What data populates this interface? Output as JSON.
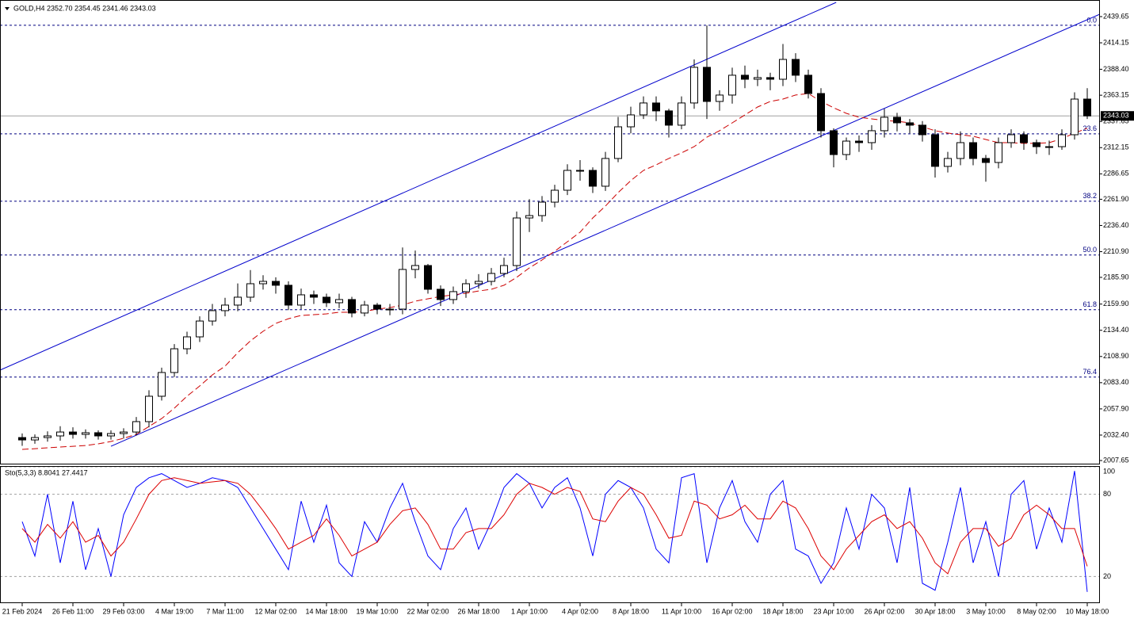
{
  "chart_data": [
    {
      "type": "candlestick",
      "title": "GOLD,H4  2352.70 2354.45 2341.46 2343.03",
      "categories": [
        "21 Feb 2024",
        null,
        null,
        null,
        "26 Feb 11:00",
        null,
        null,
        null,
        "29 Feb 03:00",
        null,
        null,
        null,
        "4 Mar 19:00",
        null,
        null,
        null,
        "7 Mar 11:00",
        null,
        null,
        null,
        "12 Mar 02:00",
        null,
        null,
        null,
        "14 Mar 18:00",
        null,
        null,
        null,
        "19 Mar 10:00",
        null,
        null,
        null,
        "22 Mar 02:00",
        null,
        null,
        null,
        "26 Mar 18:00",
        null,
        null,
        null,
        "1 Apr 10:00",
        null,
        null,
        null,
        "4 Apr 02:00",
        null,
        null,
        null,
        "8 Apr 18:00",
        null,
        null,
        null,
        "11 Apr 10:00",
        null,
        null,
        null,
        "16 Apr 02:00",
        null,
        null,
        null,
        "18 Apr 18:00",
        null,
        null,
        null,
        "23 Apr 10:00",
        null,
        null,
        null,
        "26 Apr 02:00",
        null,
        null,
        null,
        "30 Apr 18:00",
        null,
        null,
        null,
        "3 May 10:00",
        null,
        null,
        null,
        "8 May 02:00",
        null,
        null,
        null,
        "10 May 18:00"
      ],
      "open": [
        2030.0,
        2027.7,
        2030.0,
        2031.6,
        2035.4,
        2033.1,
        2034.7,
        2031.6,
        2033.9,
        2035.4,
        2045.5,
        2070.2,
        2093.3,
        2116.4,
        2128.0,
        2143.4,
        2153.5,
        2158.9,
        2166.6,
        2179.7,
        2182.0,
        2178.2,
        2158.9,
        2168.9,
        2166.6,
        2161.2,
        2164.3,
        2151.2,
        2158.9,
        2155.0,
        2155.0,
        2193.6,
        2197.4,
        2174.3,
        2164.3,
        2172.0,
        2179.7,
        2182.0,
        2189.7,
        2197.4,
        2243.7,
        2246.0,
        2259.1,
        2270.7,
        2290.0,
        2290.0,
        2274.6,
        2301.6,
        2332.4,
        2344.0,
        2355.6,
        2347.9,
        2334.0,
        2355.6,
        2390.3,
        2357.1,
        2363.3,
        2382.6,
        2378.7,
        2380.3,
        2378.7,
        2398.0,
        2382.6,
        2364.8,
        2328.6,
        2305.4,
        2318.5,
        2317.0,
        2328.6,
        2341.7,
        2336.3,
        2334.0,
        2324.7,
        2293.9,
        2301.6,
        2317.0,
        2301.6,
        2297.7,
        2317.0,
        2324.7,
        2317.0,
        2313.1,
        2313.1,
        2324.7,
        2359.4
      ],
      "high": [
        2034,
        2033,
        2036,
        2041,
        2040,
        2038,
        2037,
        2037,
        2039,
        2050,
        2076,
        2098,
        2121,
        2133,
        2148,
        2160,
        2166,
        2180,
        2193,
        2188,
        2186,
        2182,
        2175,
        2173,
        2170,
        2170,
        2167,
        2163,
        2161,
        2160,
        2215,
        2212,
        2199,
        2178,
        2177,
        2184,
        2189,
        2195,
        2205,
        2250,
        2262,
        2265,
        2276,
        2296,
        2300,
        2293,
        2308,
        2342,
        2352,
        2362,
        2362,
        2350,
        2362,
        2398,
        2431,
        2368,
        2390,
        2392,
        2388,
        2385,
        2413,
        2404,
        2388,
        2370,
        2331,
        2322,
        2324,
        2334,
        2350,
        2346,
        2340,
        2338,
        2330,
        2308,
        2328,
        2322,
        2305,
        2322,
        2330,
        2328,
        2320,
        2319,
        2330,
        2366,
        2370
      ],
      "low": [
        2022,
        2024,
        2026,
        2027,
        2029,
        2029,
        2028,
        2028,
        2029,
        2032,
        2040,
        2066,
        2089,
        2111,
        2123,
        2139,
        2148,
        2153,
        2162,
        2174,
        2170,
        2154,
        2155,
        2160,
        2157,
        2156,
        2147,
        2148,
        2150,
        2149,
        2150,
        2185,
        2170,
        2158,
        2160,
        2166,
        2175,
        2178,
        2186,
        2192,
        2230,
        2240,
        2254,
        2266,
        2280,
        2268,
        2270,
        2298,
        2326,
        2340,
        2338,
        2322,
        2330,
        2350,
        2340,
        2348,
        2355,
        2370,
        2372,
        2368,
        2372,
        2376,
        2360,
        2322,
        2293,
        2300,
        2308,
        2310,
        2322,
        2328,
        2326,
        2318,
        2283,
        2288,
        2295,
        2295,
        2279,
        2292,
        2312,
        2310,
        2306,
        2305,
        2310,
        2320,
        2340
      ],
      "close": [
        2027.7,
        2030.0,
        2031.6,
        2035.4,
        2033.1,
        2034.7,
        2031.6,
        2033.9,
        2035.4,
        2045.5,
        2070.2,
        2093.3,
        2116.4,
        2128.0,
        2143.4,
        2153.5,
        2158.9,
        2166.6,
        2179.7,
        2182.0,
        2178.2,
        2158.9,
        2168.9,
        2166.6,
        2161.2,
        2164.3,
        2151.2,
        2158.9,
        2155.0,
        2155.0,
        2193.6,
        2197.4,
        2174.3,
        2164.3,
        2172.0,
        2179.7,
        2182.0,
        2189.7,
        2197.4,
        2243.7,
        2246.0,
        2259.1,
        2270.7,
        2290.0,
        2290.0,
        2274.6,
        2301.6,
        2332.4,
        2344.0,
        2355.6,
        2347.9,
        2334.0,
        2355.6,
        2390.3,
        2357.1,
        2363.3,
        2382.6,
        2378.7,
        2380.3,
        2378.7,
        2398.0,
        2382.6,
        2364.8,
        2328.6,
        2305.4,
        2318.5,
        2317.0,
        2328.6,
        2341.7,
        2336.3,
        2334.0,
        2324.7,
        2293.9,
        2301.6,
        2317.0,
        2301.6,
        2297.7,
        2317.0,
        2324.7,
        2317.0,
        2313.1,
        2313.1,
        2324.7,
        2359.4,
        2343.03
      ],
      "colors": {
        "up": "#ffffff",
        "down": "#000000",
        "wick": "#000000"
      },
      "moving_average": {
        "color": "#cc0000",
        "values": [
          2018.5,
          2019.2,
          2020.0,
          2020.8,
          2021.5,
          2022.3,
          2023.9,
          2026.2,
          2029.3,
          2033.1,
          2040.8,
          2048.5,
          2058.6,
          2070.2,
          2080.2,
          2091.0,
          2099.5,
          2112.6,
          2124.1,
          2133.4,
          2141.1,
          2145.7,
          2148.8,
          2149.6,
          2150.4,
          2151.9,
          2151.9,
          2152.7,
          2155.0,
          2156.5,
          2158.9,
          2162.7,
          2165.0,
          2167.3,
          2168.9,
          2170.4,
          2172.7,
          2174.3,
          2178.2,
          2185.9,
          2195.1,
          2202.8,
          2211.3,
          2220.6,
          2229.8,
          2243.7,
          2255.3,
          2268.4,
          2280.0,
          2290.0,
          2295.4,
          2301.6,
          2307.0,
          2313.1,
          2322.4,
          2328.6,
          2336.3,
          2344.0,
          2351.7,
          2357.1,
          2359.4,
          2363.3,
          2364.8,
          2357.1,
          2350.9,
          2345.5,
          2341.7,
          2340.1,
          2338.6,
          2337.8,
          2336.3,
          2332.4,
          2328.6,
          2326.3,
          2324.7,
          2323.2,
          2320.1,
          2317.0,
          2317.0,
          2316.3,
          2316.3,
          2317.0,
          2320.9,
          2326.3,
          2331.0
        ]
      },
      "channel": {
        "color": "#0000cc",
        "lines": [
          {
            "x": [
              -1.75,
              64.2
            ],
            "y": [
              2095.6,
              2453.5
            ]
          },
          {
            "x": [
              7,
              85
            ],
            "y": [
              2021.5,
              2442
            ]
          }
        ]
      },
      "fibo": {
        "color": "#000080",
        "levels": [
          {
            "value": 0,
            "label": "0.0"
          },
          23.6,
          38.2,
          {
            "value": 50,
            "label": "50.0"
          },
          61.8,
          76.4
        ],
        "prices": [
          2431.2,
          2325.6,
          2260.0,
          2207.6,
          2154.4,
          2088.9
        ]
      },
      "current_price": 2343.03,
      "ylim": [
        2004.6,
        2453.5
      ],
      "yticks": [
        2439.65,
        2414.15,
        {
          "value": 2388.4,
          "label": "2388.40"
        },
        2363.15,
        2337.65,
        2312.15,
        2286.65,
        {
          "value": 2261.9,
          "label": "2261.90"
        },
        {
          "value": 2236.4,
          "label": "2236.40"
        },
        {
          "value": 2210.9,
          "label": "2210.90"
        },
        {
          "value": 2185.9,
          "label": "2185.90"
        },
        {
          "value": 2159.9,
          "label": "2159.90"
        },
        {
          "value": 2134.4,
          "label": "2134.40"
        },
        {
          "value": 2108.9,
          "label": "2108.90"
        },
        {
          "value": 2083.4,
          "label": "2083.40"
        },
        {
          "value": 2057.9,
          "label": "2057.90"
        },
        {
          "value": 2032.4,
          "label": "2032.40"
        },
        2007.65
      ]
    },
    {
      "type": "line",
      "title": "Sto(5,3,3) 8.8041 27.4417",
      "series": [
        {
          "color": "#0000ff",
          "values": [
            60,
            35,
            80,
            30,
            75,
            25,
            55,
            20,
            65,
            85,
            92,
            95,
            90,
            85,
            88,
            92,
            90,
            85,
            70,
            55,
            40,
            25,
            75,
            45,
            72,
            30,
            20,
            60,
            45,
            70,
            88,
            60,
            35,
            25,
            55,
            70,
            40,
            60,
            85,
            95,
            88,
            70,
            85,
            92,
            70,
            35,
            80,
            90,
            85,
            70,
            40,
            30,
            92,
            95,
            30,
            70,
            90,
            60,
            45,
            80,
            90,
            40,
            35,
            15,
            30,
            70,
            40,
            80,
            70,
            30,
            85,
            15,
            10,
            45,
            85,
            30,
            60,
            20,
            80,
            90,
            40,
            70,
            45,
            97,
            8.8041
          ]
        },
        {
          "color": "#dd0000",
          "values": [
            55,
            45,
            58,
            48,
            60,
            45,
            50,
            35,
            45,
            62,
            80,
            90,
            92,
            90,
            88,
            89,
            90,
            88,
            80,
            68,
            55,
            40,
            45,
            50,
            62,
            50,
            35,
            40,
            45,
            58,
            68,
            70,
            58,
            40,
            40,
            52,
            55,
            55,
            65,
            80,
            88,
            85,
            80,
            85,
            82,
            62,
            60,
            75,
            85,
            80,
            65,
            48,
            50,
            75,
            72,
            62,
            65,
            72,
            62,
            62,
            75,
            70,
            55,
            35,
            25,
            40,
            50,
            60,
            65,
            55,
            60,
            48,
            30,
            22,
            45,
            55,
            55,
            42,
            48,
            65,
            72,
            65,
            55,
            55,
            27.4417
          ]
        }
      ],
      "ylim": [
        0,
        100
      ],
      "yticks": [
        100,
        80,
        20
      ]
    }
  ]
}
